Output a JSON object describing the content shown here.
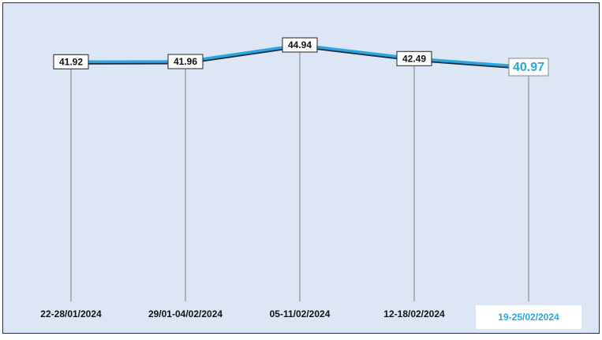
{
  "chart_data": {
    "type": "line",
    "categories": [
      "22-28/01/2024",
      "29/01-04/02/2024",
      "05-11/02/2024",
      "12-18/02/2024",
      "19-25/02/2024"
    ],
    "values": [
      41.92,
      41.96,
      44.94,
      42.49,
      40.97
    ],
    "color": "#2aa6df"
  }
}
